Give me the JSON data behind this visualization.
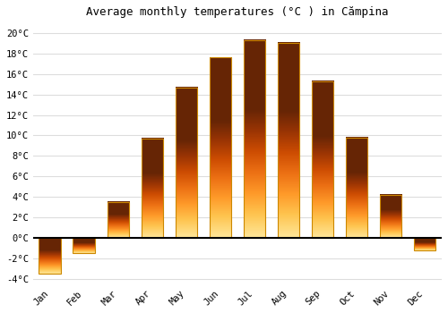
{
  "title": "Average monthly temperatures (°C ) in Cămpina",
  "months": [
    "Jan",
    "Feb",
    "Mar",
    "Apr",
    "May",
    "Jun",
    "Jul",
    "Aug",
    "Sep",
    "Oct",
    "Nov",
    "Dec"
  ],
  "values": [
    -3.5,
    -1.5,
    3.5,
    9.7,
    14.7,
    17.6,
    19.3,
    19.0,
    15.3,
    9.8,
    4.2,
    -1.2
  ],
  "bar_color_top": "#FFD966",
  "bar_color_bottom": "#FFA500",
  "bar_edge_color": "#CC8800",
  "ylim": [
    -4.5,
    21
  ],
  "yticks": [
    -4,
    -2,
    0,
    2,
    4,
    6,
    8,
    10,
    12,
    14,
    16,
    18,
    20
  ],
  "ytick_labels": [
    "-4°C",
    "-2°C",
    "0°C",
    "2°C",
    "4°C",
    "6°C",
    "8°C",
    "10°C",
    "12°C",
    "14°C",
    "16°C",
    "18°C",
    "20°C"
  ],
  "background_color": "#ffffff",
  "grid_color": "#dddddd",
  "title_fontsize": 9,
  "tick_fontsize": 7.5
}
